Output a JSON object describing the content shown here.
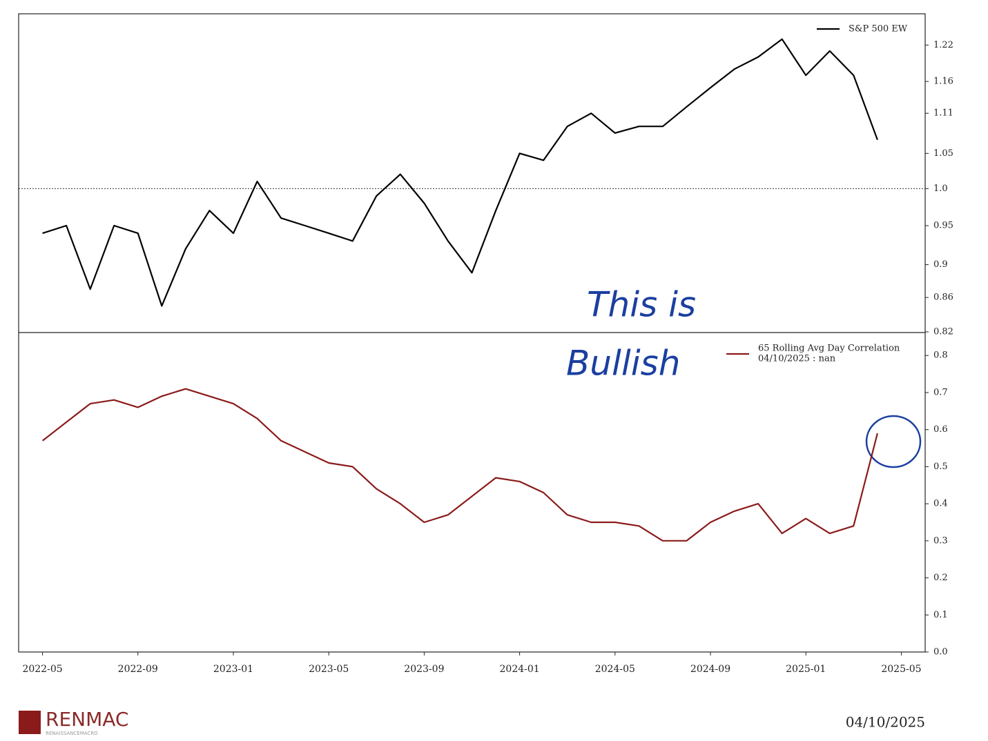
{
  "chart_data": [
    {
      "type": "line",
      "log_scale": true,
      "legend": "upper right",
      "reference_line": 1,
      "x": [
        "2022-05",
        "2022-06",
        "2022-07",
        "2022-08",
        "2022-09",
        "2022-10",
        "2022-11",
        "2022-12",
        "2023-01",
        "2023-02",
        "2023-03",
        "2023-04",
        "2023-05",
        "2023-06",
        "2023-07",
        "2023-08",
        "2023-09",
        "2023-10",
        "2023-11",
        "2023-12",
        "2024-01",
        "2024-02",
        "2024-03",
        "2024-04",
        "2024-05",
        "2024-06",
        "2024-07",
        "2024-08",
        "2024-09",
        "2024-10",
        "2024-11",
        "2024-12",
        "2025-01",
        "2025-02",
        "2025-03",
        "2025-04"
      ],
      "series": [
        {
          "name": "S&P 500 EW",
          "color": "#000000",
          "values": [
            0.94,
            0.95,
            0.87,
            0.95,
            0.94,
            0.85,
            0.92,
            0.97,
            0.94,
            1.01,
            0.96,
            0.95,
            0.94,
            0.93,
            0.99,
            1.02,
            0.98,
            0.93,
            0.89,
            0.97,
            1.05,
            1.04,
            1.09,
            1.11,
            1.08,
            1.09,
            1.09,
            1.12,
            1.15,
            1.18,
            1.2,
            1.23,
            1.17,
            1.21,
            1.17,
            1.07
          ]
        }
      ],
      "xlim": [
        "2022-04",
        "2025-06"
      ],
      "ylim": [
        0.82,
        1.274
      ],
      "yticks": [
        0.82,
        0.86,
        0.9,
        0.95,
        {
          "value": 1,
          "label": "1.0"
        },
        1.05,
        1.11,
        1.16,
        1.22
      ]
    },
    {
      "type": "line",
      "legend": "upper right",
      "legend_note": "04/10/2025 : nan",
      "annotation": [
        "This is",
        "Bullish"
      ],
      "x": [
        "2022-05",
        "2022-06",
        "2022-07",
        "2022-08",
        "2022-09",
        "2022-10",
        "2022-11",
        "2022-12",
        "2023-01",
        "2023-02",
        "2023-03",
        "2023-04",
        "2023-05",
        "2023-06",
        "2023-07",
        "2023-08",
        "2023-09",
        "2023-10",
        "2023-11",
        "2023-12",
        "2024-01",
        "2024-02",
        "2024-03",
        "2024-04",
        "2024-05",
        "2024-06",
        "2024-07",
        "2024-08",
        "2024-09",
        "2024-10",
        "2024-11",
        "2024-12",
        "2025-01",
        "2025-02",
        "2025-03",
        "2025-04"
      ],
      "series": [
        {
          "name": "65 Rolling Avg Day Correlation",
          "color": "#8b1a1a",
          "values": [
            0.57,
            0.62,
            0.67,
            0.68,
            0.66,
            0.69,
            0.71,
            0.69,
            0.67,
            0.63,
            0.57,
            0.54,
            0.51,
            0.5,
            0.44,
            0.4,
            0.35,
            0.37,
            0.42,
            0.47,
            0.46,
            0.43,
            0.37,
            0.35,
            0.35,
            0.34,
            0.3,
            0.3,
            0.35,
            0.38,
            0.4,
            0.32,
            0.36,
            0.32,
            0.34,
            0.59
          ]
        }
      ],
      "xlim": [
        "2022-04",
        "2025-06"
      ],
      "ylim": [
        0,
        0.86
      ],
      "xticks": [
        "2022-05",
        "2022-09",
        "2023-01",
        "2023-05",
        "2023-09",
        "2024-01",
        "2024-05",
        "2024-09",
        "2025-01",
        "2025-05"
      ],
      "yticks": [
        {
          "value": 0,
          "label": "0.0"
        },
        0.1,
        0.2,
        0.3,
        0.4,
        0.5,
        0.6,
        0.7,
        0.8
      ]
    }
  ],
  "footer": {
    "brand": "RENMAC",
    "brand_sub": "RENAISSANCEMACRO",
    "date": "04/10/2025"
  }
}
